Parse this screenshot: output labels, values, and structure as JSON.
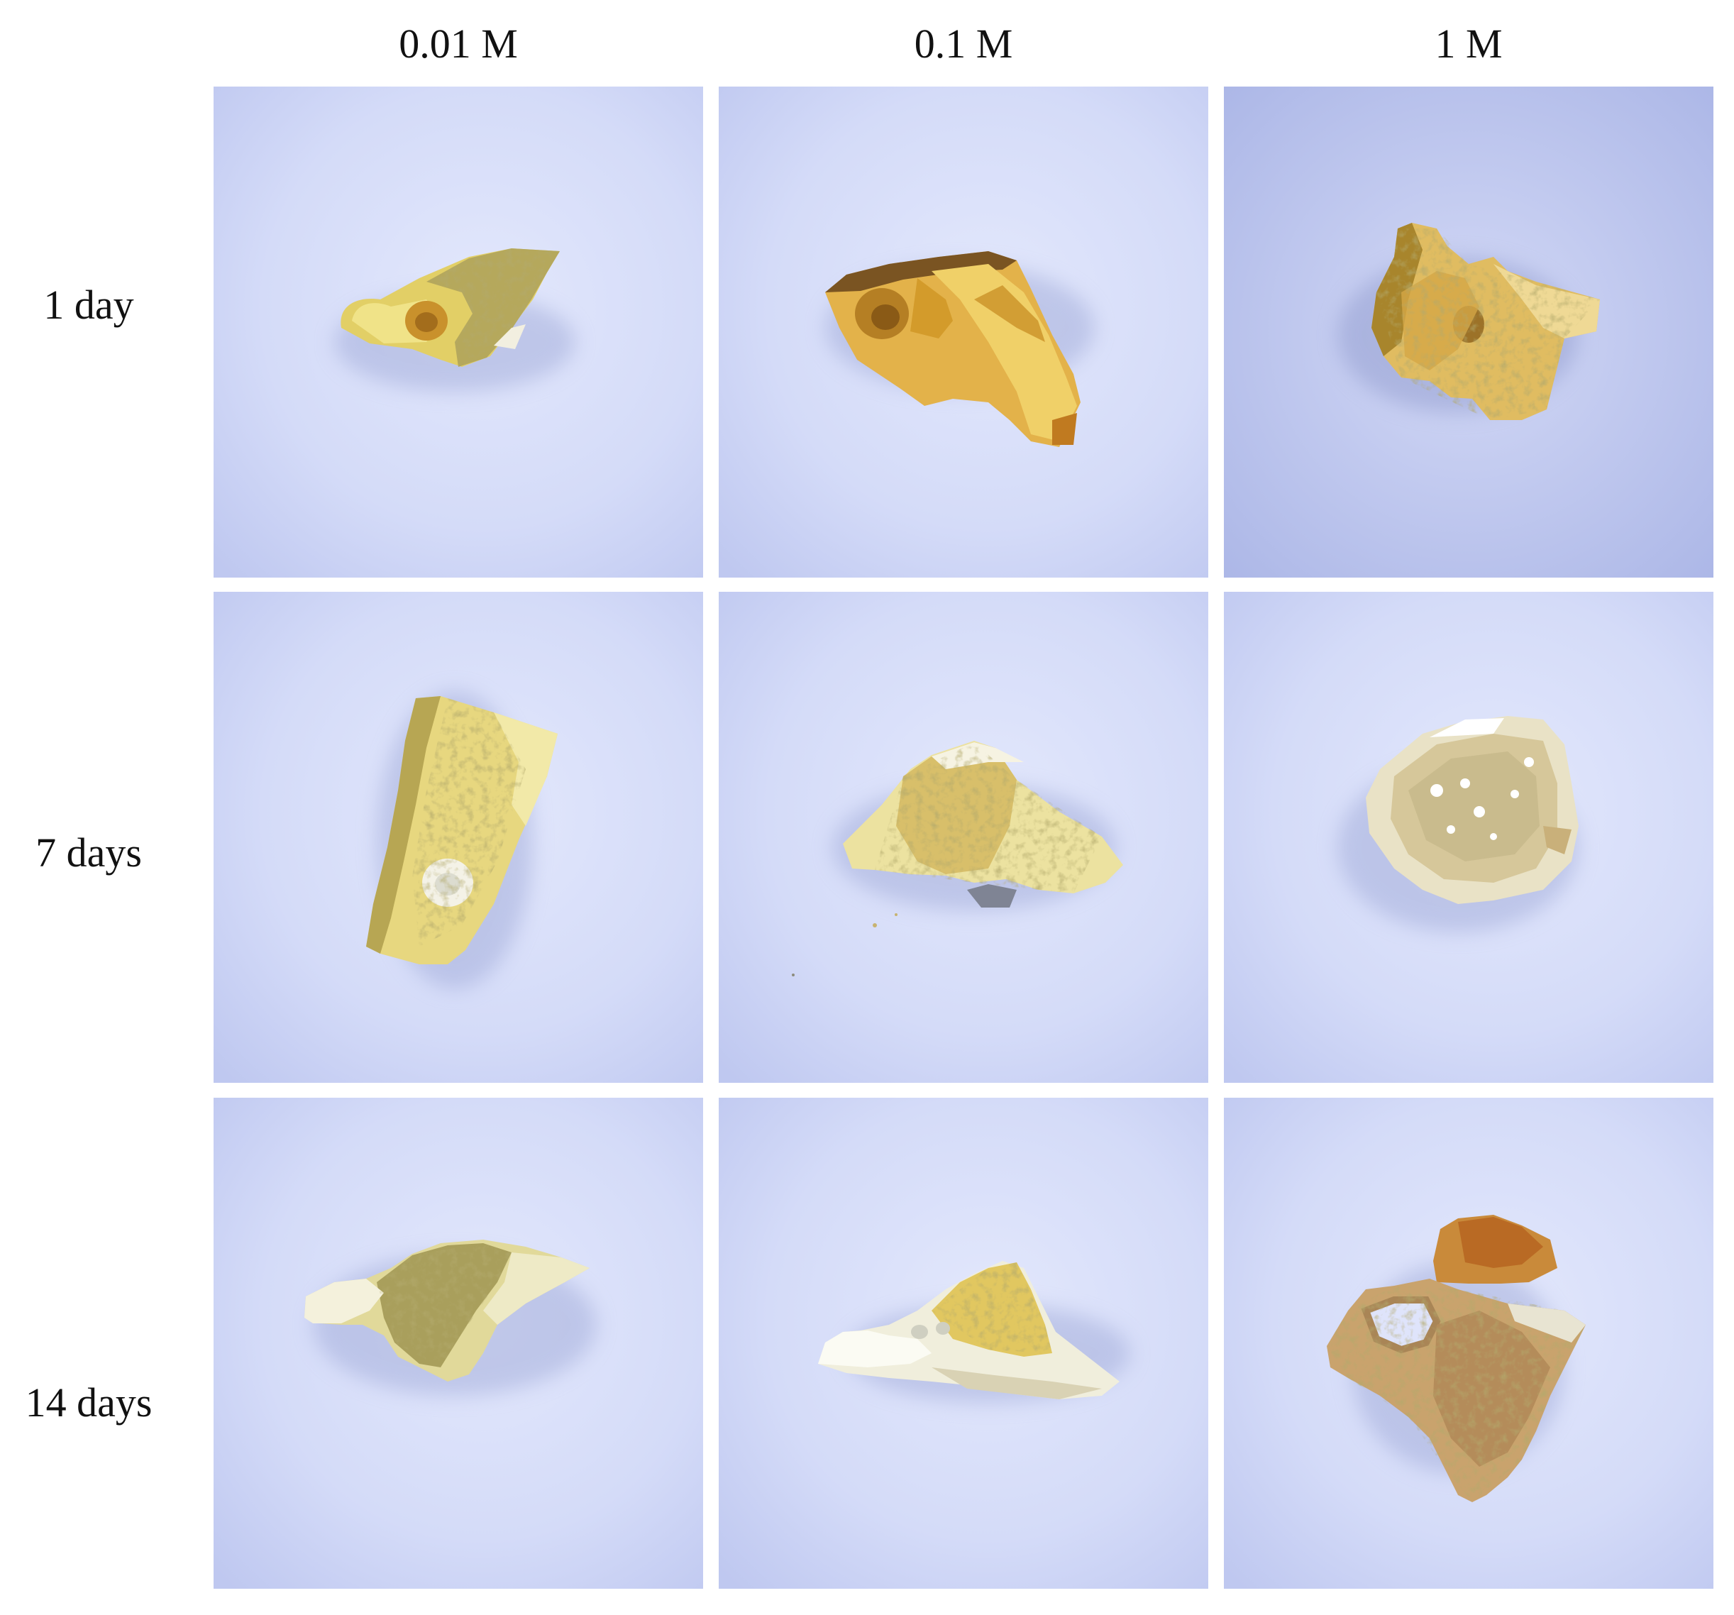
{
  "columns": [
    {
      "label": "0.01 M"
    },
    {
      "label": "0.1 M"
    },
    {
      "label": "1 M"
    }
  ],
  "rows": [
    {
      "label": "1 day"
    },
    {
      "label": "7 days"
    },
    {
      "label": "14 days"
    }
  ],
  "colors": {
    "background_light": "#dfe4fb",
    "background_mid": "#c8d0f4",
    "background_shadow": "#b2bce9",
    "sample_yellow": "#e8d47a",
    "sample_olive": "#a99f5c",
    "sample_amber": "#d49c2c",
    "sample_white": "#f3f1e3",
    "sample_tan": "#c8a169",
    "sample_rust": "#b96a24"
  },
  "cells": [
    {
      "row": 0,
      "col": 0,
      "subject": "bone-fragment"
    },
    {
      "row": 0,
      "col": 1,
      "subject": "bone-fragment"
    },
    {
      "row": 0,
      "col": 2,
      "subject": "bone-fragment"
    },
    {
      "row": 1,
      "col": 0,
      "subject": "bone-fragment"
    },
    {
      "row": 1,
      "col": 1,
      "subject": "bone-fragment"
    },
    {
      "row": 1,
      "col": 2,
      "subject": "bone-fragment"
    },
    {
      "row": 2,
      "col": 0,
      "subject": "bone-fragment"
    },
    {
      "row": 2,
      "col": 1,
      "subject": "bone-fragment-white-chip"
    },
    {
      "row": 2,
      "col": 2,
      "subject": "bone-fragment-pair"
    }
  ]
}
